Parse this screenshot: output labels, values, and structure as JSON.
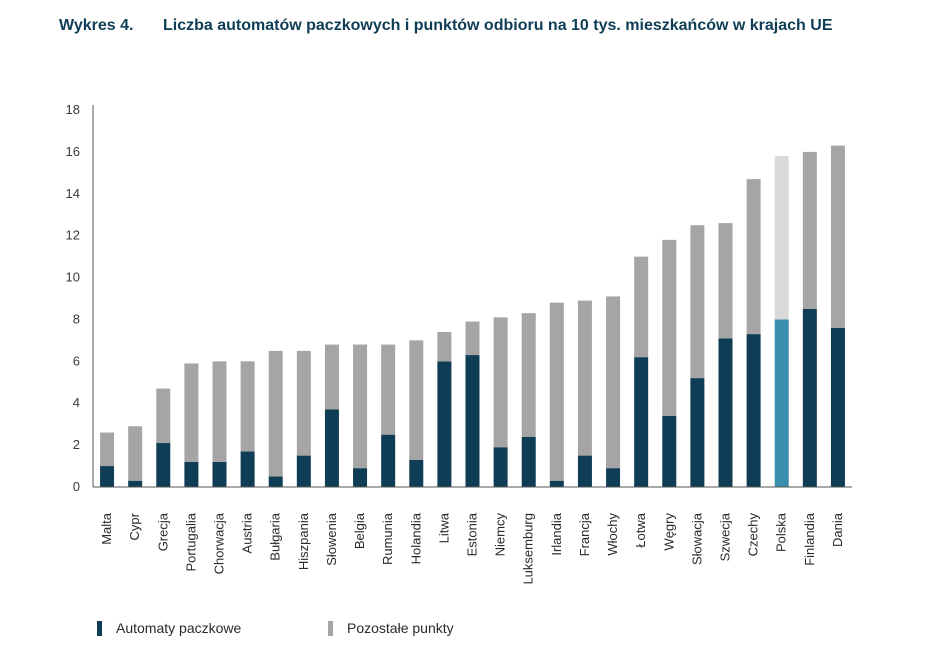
{
  "chart_data": {
    "type": "bar",
    "stacked": true,
    "title_number": "Wykres 4.",
    "title": "Liczba automatów paczkowych i punktów odbioru na 10 tys. mieszkańców w krajach UE",
    "xlabel": "",
    "ylabel": "",
    "ylim": [
      0,
      18
    ],
    "yticks": [
      "0",
      "2",
      "4",
      "6",
      "8",
      "10",
      "12",
      "14",
      "16",
      "18"
    ],
    "grid": false,
    "legend_position": "bottom-left",
    "categories": [
      "Malta",
      "Cypr",
      "Grecja",
      "Portugalia",
      "Chorwacja",
      "Austria",
      "Bułgaria",
      "Hiszpania",
      "Słowenia",
      "Belgia",
      "Rumunia",
      "Holandia",
      "Litwa",
      "Estonia",
      "Niemcy",
      "Luksemburg",
      "Irlandia",
      "Francja",
      "Włochy",
      "Łotwa",
      "Węgry",
      "Słowacja",
      "Szwecja",
      "Czechy",
      "Polska",
      "Finlandia",
      "Dania"
    ],
    "highlight_category": "Polska",
    "series": [
      {
        "name": "Automaty paczkowe",
        "color": "#0f3d55",
        "highlight_color": "#3a8fae",
        "values": [
          1.0,
          0.3,
          2.1,
          1.2,
          1.2,
          1.7,
          0.5,
          1.5,
          3.7,
          0.9,
          2.5,
          1.3,
          6.0,
          6.3,
          1.9,
          2.4,
          0.3,
          1.5,
          0.9,
          6.2,
          3.4,
          5.2,
          7.1,
          7.3,
          8.0,
          8.5,
          7.6
        ]
      },
      {
        "name": "Pozostałe punkty",
        "color": "#a5a5a5",
        "highlight_color": "#d9d9d9",
        "values": [
          1.6,
          2.6,
          2.6,
          4.7,
          4.8,
          4.3,
          6.0,
          5.0,
          3.1,
          5.9,
          4.3,
          5.7,
          1.4,
          1.6,
          6.2,
          5.9,
          8.5,
          7.4,
          8.2,
          4.8,
          8.4,
          7.3,
          5.5,
          7.4,
          7.8,
          7.5,
          8.7
        ]
      }
    ]
  }
}
